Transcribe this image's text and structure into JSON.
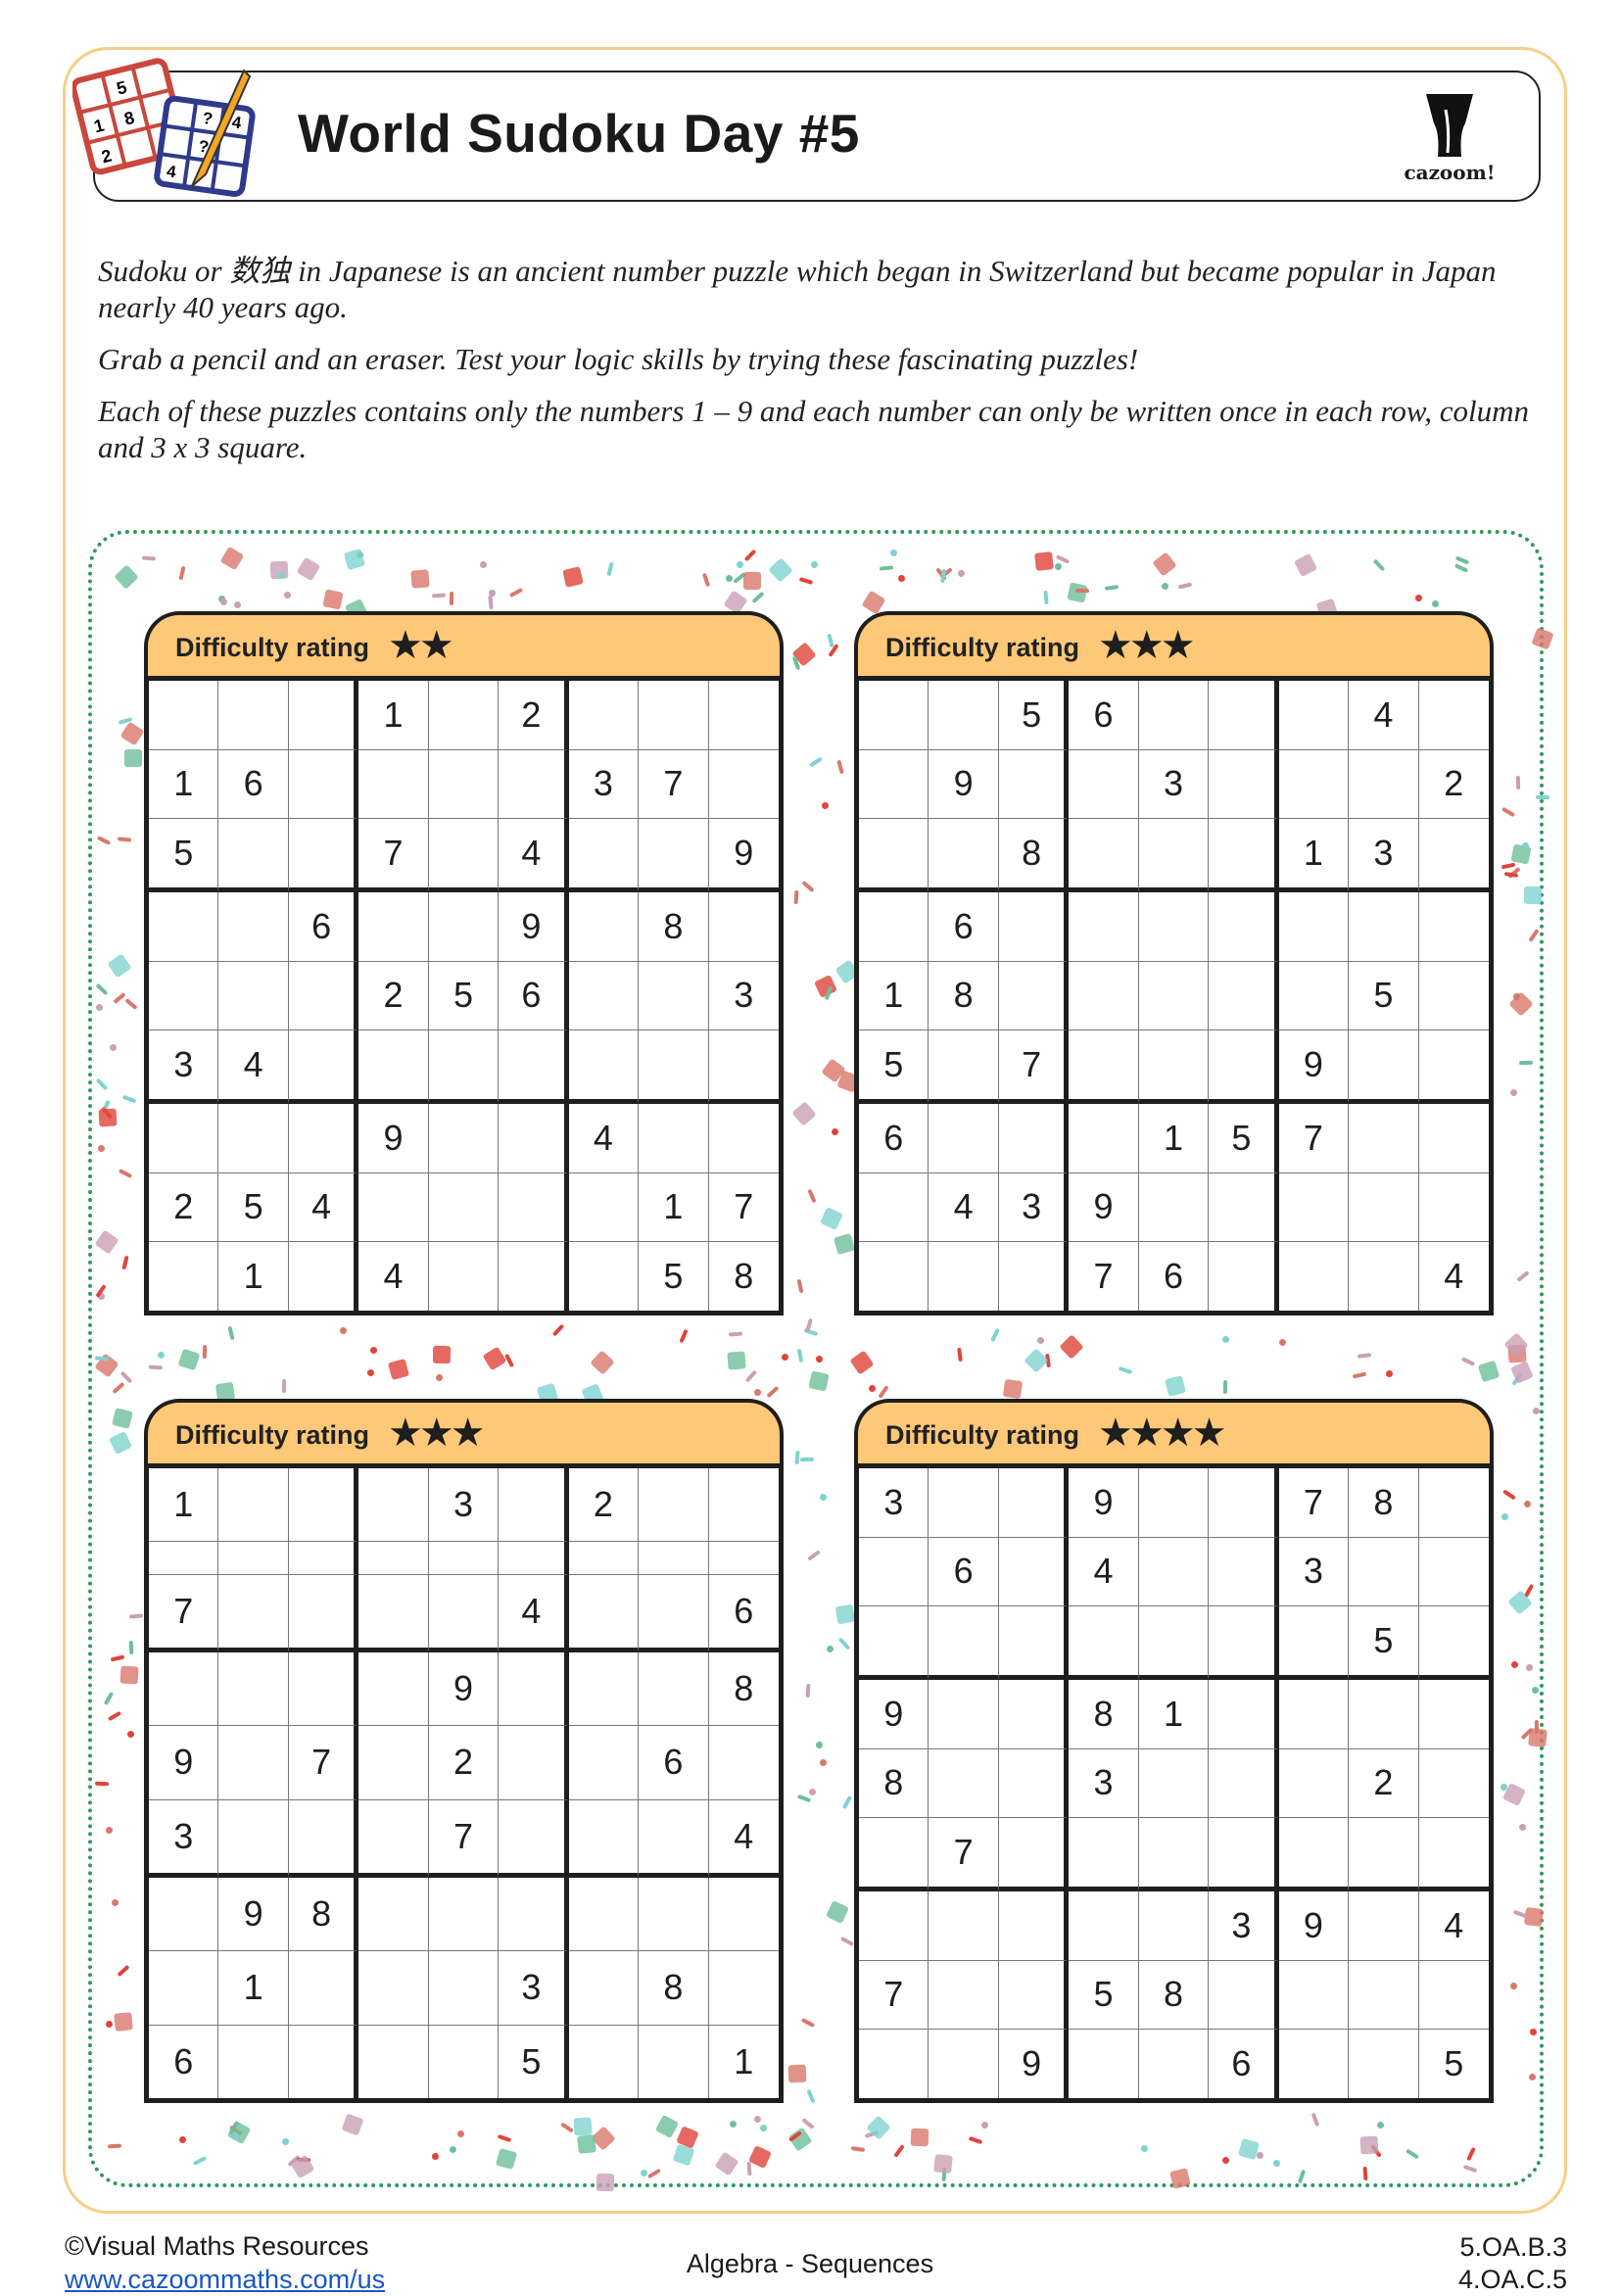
{
  "header": {
    "title": "World Sudoku Day #5",
    "brand": "cazoom!"
  },
  "intro": {
    "p1": "Sudoku or  数独  in Japanese is an ancient number puzzle which began in Switzerland but became popular in Japan nearly 40 years ago.",
    "p2": "Grab a pencil and an eraser. Test your logic skills by trying these fascinating puzzles!",
    "p3": "Each of these puzzles contains only the numbers 1 – 9 and each number can only be written once in each row, column and 3 x 3 square."
  },
  "colors": {
    "header_fill": "#fdc878",
    "border_outer": "#f6cf86",
    "dotted_border": "#2e9a5e",
    "confetti": [
      "#d9776b",
      "#6fbf9a",
      "#7fd3cf",
      "#c9a0b6",
      "#e0443a"
    ]
  },
  "puzzles": [
    {
      "label": "Difficulty rating",
      "stars": 2,
      "grid": [
        "...1.2...",
        "16....37.",
        "5..7.4..9",
        "..6..9.8.",
        "...256..3",
        "34.......",
        "...9..4..",
        "254....17",
        ".1.4...58"
      ]
    },
    {
      "label": "Difficulty rating",
      "stars": 3,
      "grid": [
        "..56...4.",
        ".9..3...2",
        "..8...13.",
        ".6.......",
        "18.....5.",
        "5.7...9..",
        "6...157..",
        ".439.....",
        "...76...4"
      ]
    },
    {
      "label": "Difficulty rating",
      "stars": 3,
      "grid": [
        "1...3.2..",
        ".........",
        "7....4..6",
        "....9...8",
        "9.7.2..6.",
        "3...7...4",
        ".98......",
        ".1...3.8.",
        "6....5..1"
      ]
    },
    {
      "label": "Difficulty rating",
      "stars": 4,
      "grid": [
        "3..9..78.",
        ".6.4..3..",
        ".......5.",
        "9..81....",
        "8..3...2.",
        ".7.......",
        ".....39.4",
        "7..58....",
        "..9..6..5"
      ]
    }
  ],
  "footer": {
    "copyright": "©Visual Maths Resources",
    "link": "www.cazoommaths.com/us",
    "topic": "Algebra - Sequences",
    "standard1": "5.OA.B.3",
    "standard2": "4.OA.C.5"
  }
}
